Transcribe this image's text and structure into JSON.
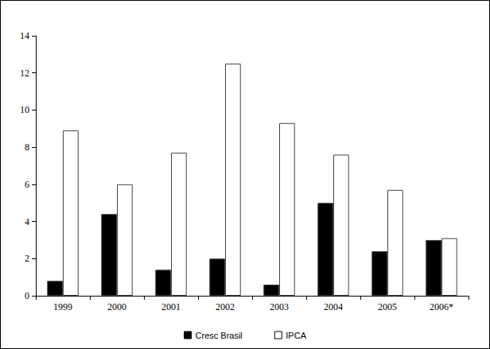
{
  "chart_data": {
    "type": "bar",
    "categories": [
      "1999",
      "2000",
      "2001",
      "2002",
      "2003",
      "2004",
      "2005",
      "2006*"
    ],
    "series": [
      {
        "name": "Cresc Brasil",
        "color": "#000000",
        "values": [
          0.8,
          4.4,
          1.4,
          2.0,
          0.6,
          5.0,
          2.4,
          3.0
        ]
      },
      {
        "name": "IPCA",
        "color": "#ffffff",
        "values": [
          8.9,
          6.0,
          7.7,
          12.5,
          9.3,
          7.6,
          5.7,
          3.1
        ]
      }
    ],
    "ylim": [
      0,
      14
    ],
    "yticks": [
      0,
      2,
      4,
      6,
      8,
      10,
      12,
      14
    ],
    "grid": false,
    "legend": "bottom"
  }
}
